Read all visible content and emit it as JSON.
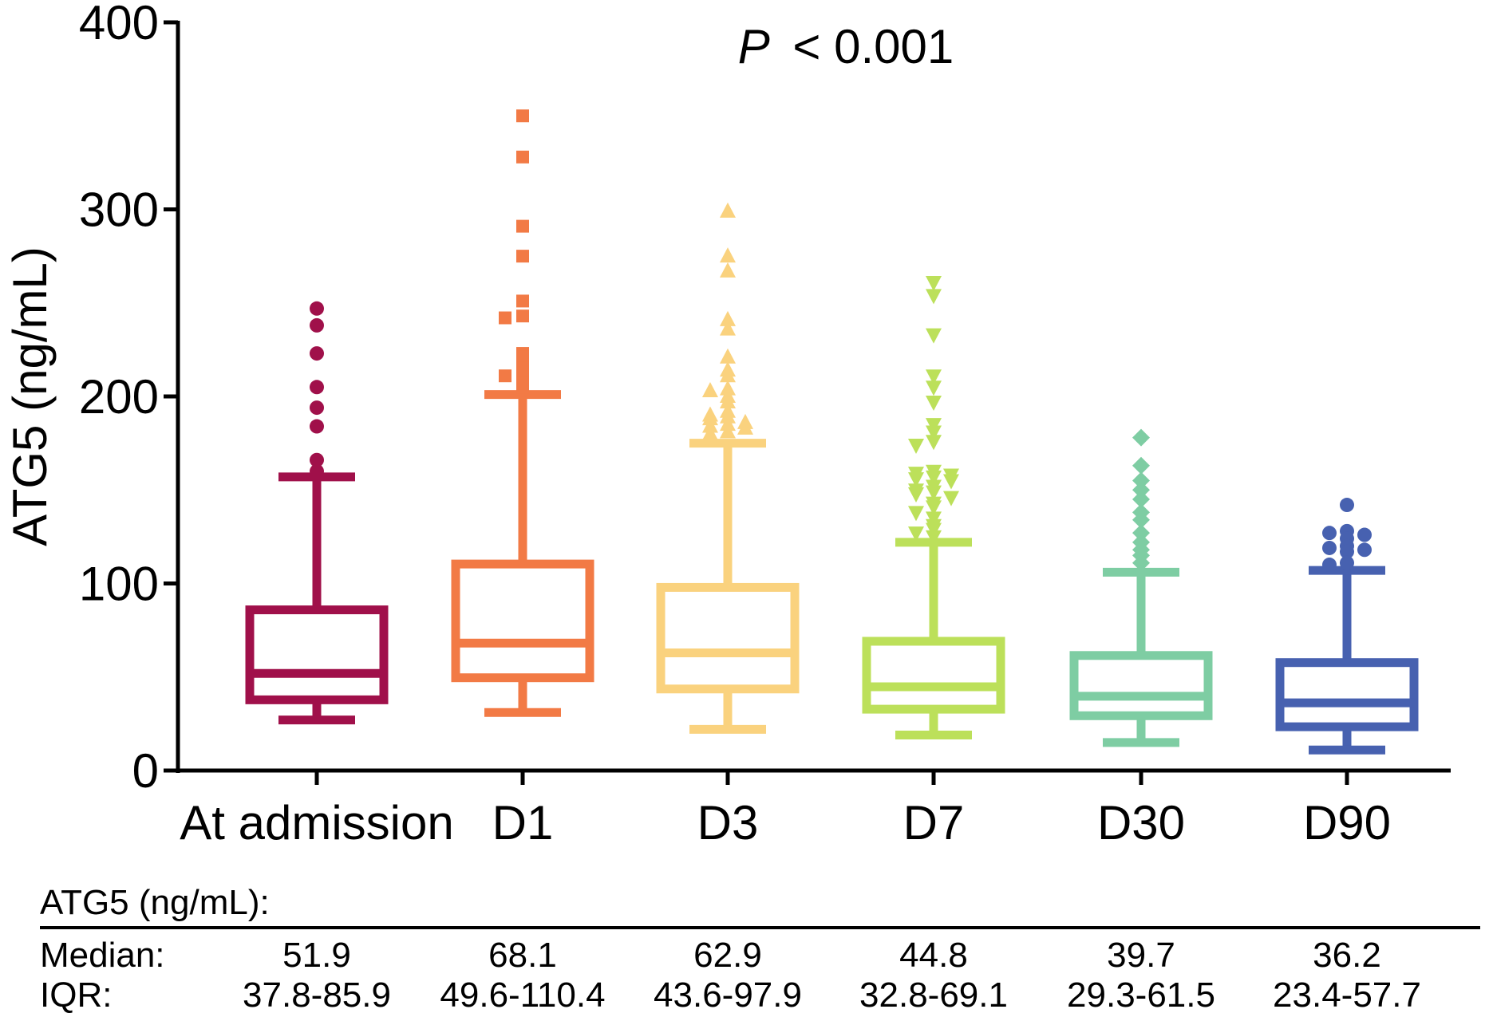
{
  "chart_data": {
    "type": "box",
    "ylabel": "ATG5 (ng/mL)",
    "ylim": [
      0,
      400
    ],
    "yticks": [
      0,
      100,
      200,
      300,
      400
    ],
    "annotation": {
      "italic": "P",
      "rest": " < 0.001"
    },
    "categories": [
      "At admission",
      "D1",
      "D3",
      "D7",
      "D30",
      "D90"
    ],
    "series": [
      {
        "category": "At admission",
        "color": "#A0104A",
        "marker": "circle",
        "whisker_low": 27,
        "q1": 37.8,
        "median": 51.9,
        "q3": 85.9,
        "whisker_high": 157,
        "outliers": [
          247,
          238,
          223,
          205,
          194,
          184,
          166,
          160
        ]
      },
      {
        "category": "D1",
        "color": "#F27A45",
        "marker": "square",
        "whisker_low": 31,
        "q1": 49.6,
        "median": 68.1,
        "q3": 110.4,
        "whisker_high": 201,
        "outliers": [
          350,
          328,
          291,
          275,
          251,
          243,
          242,
          223,
          221,
          215,
          213,
          211,
          207,
          205
        ]
      },
      {
        "category": "D3",
        "color": "#FAD27E",
        "marker": "triangle-up",
        "whisker_low": 22,
        "q1": 43.6,
        "median": 62.9,
        "q3": 97.9,
        "whisker_high": 175,
        "outliers": [
          299,
          275,
          267,
          241,
          236,
          221,
          214,
          211,
          204,
          203,
          200,
          197,
          192,
          190,
          189,
          188,
          186,
          185,
          184,
          183,
          181,
          180
        ]
      },
      {
        "category": "D7",
        "color": "#BCE05A",
        "marker": "triangle-down",
        "whisker_low": 19,
        "q1": 32.8,
        "median": 44.8,
        "q3": 69.1,
        "whisker_high": 122,
        "outliers": [
          261,
          254,
          233,
          211,
          205,
          197,
          185,
          181,
          176,
          174,
          160,
          159,
          158,
          157,
          156,
          155,
          152,
          150,
          149,
          148,
          146,
          143,
          141,
          138,
          135,
          131,
          129,
          127,
          125
        ]
      },
      {
        "category": "D30",
        "color": "#7ECDA3",
        "marker": "diamond",
        "whisker_low": 15,
        "q1": 29.3,
        "median": 39.7,
        "q3": 61.5,
        "whisker_high": 106,
        "outliers": [
          178,
          163,
          155,
          150,
          145,
          138,
          134,
          127,
          122,
          118,
          115,
          111
        ]
      },
      {
        "category": "D90",
        "color": "#4761B0",
        "marker": "circle",
        "whisker_low": 11,
        "q1": 23.4,
        "median": 36.2,
        "q3": 57.7,
        "whisker_high": 107,
        "outliers": [
          142,
          128,
          127,
          126,
          124,
          120,
          119,
          118,
          117,
          111,
          110
        ]
      }
    ]
  },
  "summary_table": {
    "title": "ATG5 (ng/mL):",
    "rows": [
      {
        "label": "Median:",
        "values": [
          "51.9",
          "68.1",
          "62.9",
          "44.8",
          "39.7",
          "36.2"
        ]
      },
      {
        "label": "IQR:",
        "values": [
          "37.8-85.9",
          "49.6-110.4",
          "43.6-97.9",
          "32.8-69.1",
          "29.3-61.5",
          "23.4-57.7"
        ]
      }
    ]
  }
}
